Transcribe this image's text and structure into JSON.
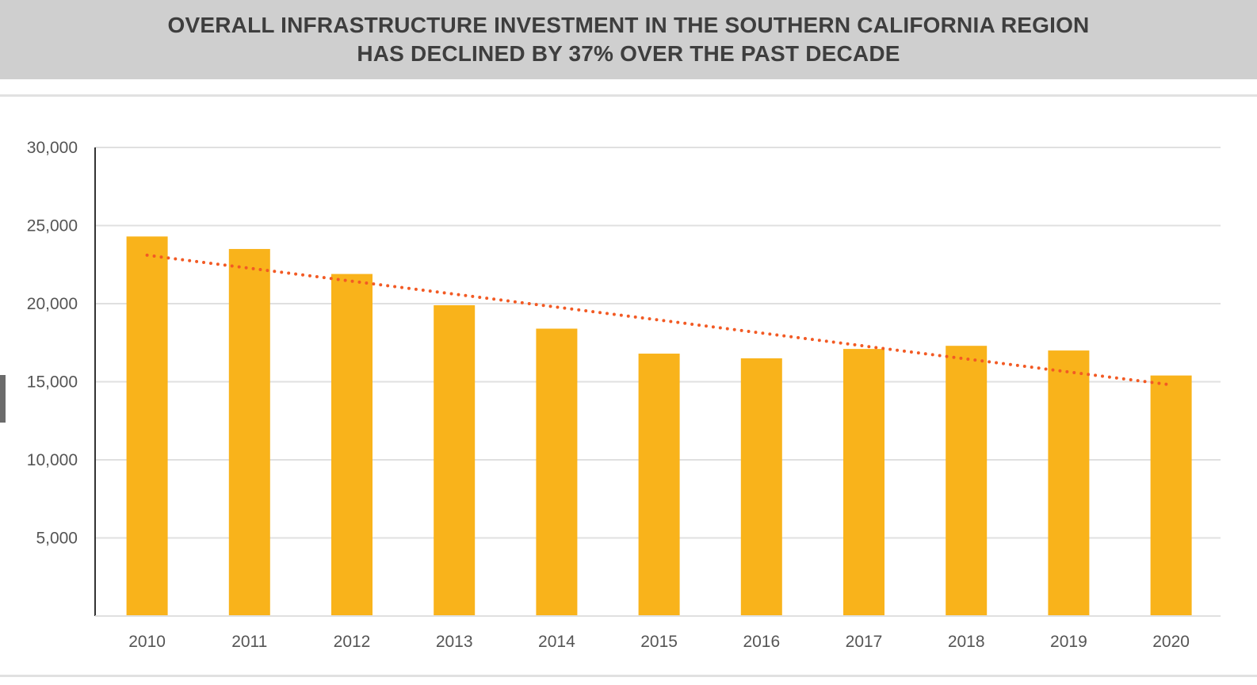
{
  "header": {
    "title_line1": "OVERALL INFRASTRUCTURE INVESTMENT IN THE SOUTHERN CALIFORNIA REGION",
    "title_line2": "HAS DECLINED BY 37% OVER THE PAST DECADE"
  },
  "colors": {
    "header_bg": "#cfcfcf",
    "bar": "#f9b31b",
    "trendline": "#f25a24",
    "gridline": "#e0e0e0",
    "axis": "#333333"
  },
  "chart_data": {
    "type": "bar",
    "title": "OVERALL INFRASTRUCTURE INVESTMENT IN THE SOUTHERN CALIFORNIA REGION HAS DECLINED BY 37% OVER THE PAST DECADE",
    "xlabel": "",
    "ylabel": "",
    "categories": [
      "2010",
      "2011",
      "2012",
      "2013",
      "2014",
      "2015",
      "2016",
      "2017",
      "2018",
      "2019",
      "2020"
    ],
    "values": [
      24300,
      23500,
      21900,
      19900,
      18400,
      16800,
      16500,
      17100,
      17300,
      17000,
      15400
    ],
    "ylim": [
      0,
      30000
    ],
    "yticks": [
      5000,
      10000,
      15000,
      20000,
      25000,
      30000
    ],
    "ytick_labels": [
      "5,000",
      "10,000",
      "15,000",
      "20,000",
      "25,000",
      "30,000"
    ],
    "trendline": {
      "style": "dotted",
      "start": [
        2010,
        23100
      ],
      "end": [
        2020,
        14800
      ]
    },
    "grid": true,
    "legend": "none"
  }
}
